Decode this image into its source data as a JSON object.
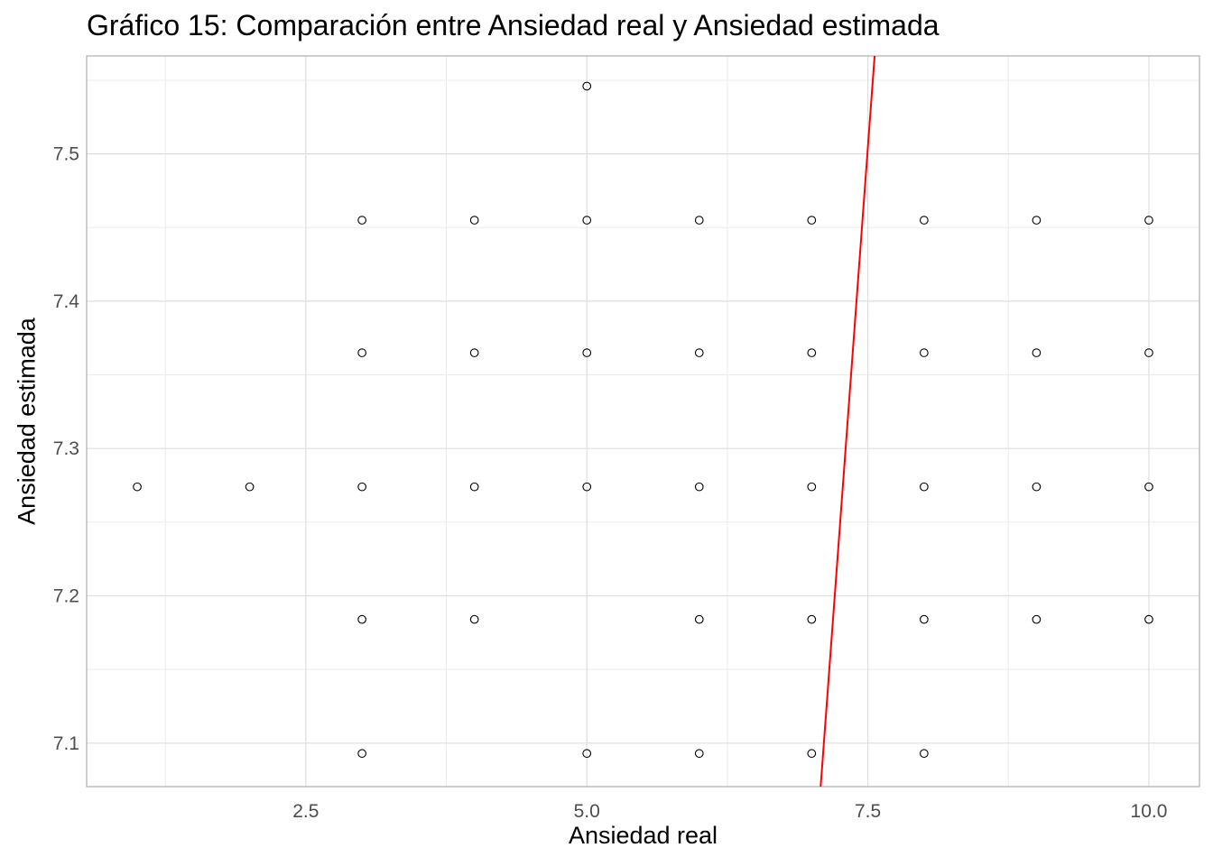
{
  "chart_data": {
    "type": "scatter",
    "title": "Gráfico 15: Comparación entre Ansiedad real y Ansiedad estimada",
    "xlabel": "Ansiedad real",
    "ylabel": "Ansiedad estimada",
    "xlim": [
      0.55,
      10.45
    ],
    "ylim": [
      7.0705,
      7.5665
    ],
    "x_ticks": [
      2.5,
      5.0,
      7.5,
      10.0
    ],
    "x_tick_labels": [
      "2.5",
      "5.0",
      "7.5",
      "10.0"
    ],
    "y_ticks": [
      7.1,
      7.2,
      7.3,
      7.4,
      7.5
    ],
    "y_tick_labels": [
      "7.1",
      "7.2",
      "7.3",
      "7.4",
      "7.5"
    ],
    "grid": true,
    "points": [
      {
        "x": 5,
        "y": 7.546
      },
      {
        "x": 3,
        "y": 7.455
      },
      {
        "x": 4,
        "y": 7.455
      },
      {
        "x": 5,
        "y": 7.455
      },
      {
        "x": 6,
        "y": 7.455
      },
      {
        "x": 7,
        "y": 7.455
      },
      {
        "x": 8,
        "y": 7.455
      },
      {
        "x": 9,
        "y": 7.455
      },
      {
        "x": 10,
        "y": 7.455
      },
      {
        "x": 3,
        "y": 7.365
      },
      {
        "x": 4,
        "y": 7.365
      },
      {
        "x": 5,
        "y": 7.365
      },
      {
        "x": 6,
        "y": 7.365
      },
      {
        "x": 7,
        "y": 7.365
      },
      {
        "x": 8,
        "y": 7.365
      },
      {
        "x": 9,
        "y": 7.365
      },
      {
        "x": 10,
        "y": 7.365
      },
      {
        "x": 1,
        "y": 7.274
      },
      {
        "x": 2,
        "y": 7.274
      },
      {
        "x": 3,
        "y": 7.274
      },
      {
        "x": 4,
        "y": 7.274
      },
      {
        "x": 5,
        "y": 7.274
      },
      {
        "x": 6,
        "y": 7.274
      },
      {
        "x": 7,
        "y": 7.274
      },
      {
        "x": 8,
        "y": 7.274
      },
      {
        "x": 9,
        "y": 7.274
      },
      {
        "x": 10,
        "y": 7.274
      },
      {
        "x": 3,
        "y": 7.184
      },
      {
        "x": 4,
        "y": 7.184
      },
      {
        "x": 6,
        "y": 7.184
      },
      {
        "x": 7,
        "y": 7.184
      },
      {
        "x": 8,
        "y": 7.184
      },
      {
        "x": 9,
        "y": 7.184
      },
      {
        "x": 10,
        "y": 7.184
      },
      {
        "x": 3,
        "y": 7.093
      },
      {
        "x": 5,
        "y": 7.093
      },
      {
        "x": 6,
        "y": 7.093
      },
      {
        "x": 7,
        "y": 7.093
      },
      {
        "x": 8,
        "y": 7.093
      }
    ],
    "reference_line": {
      "color": "#ff0000",
      "from": {
        "x": 7.08,
        "y": 7.0705
      },
      "to": {
        "x": 7.56,
        "y": 7.5665
      }
    },
    "point_color": "#000000"
  }
}
